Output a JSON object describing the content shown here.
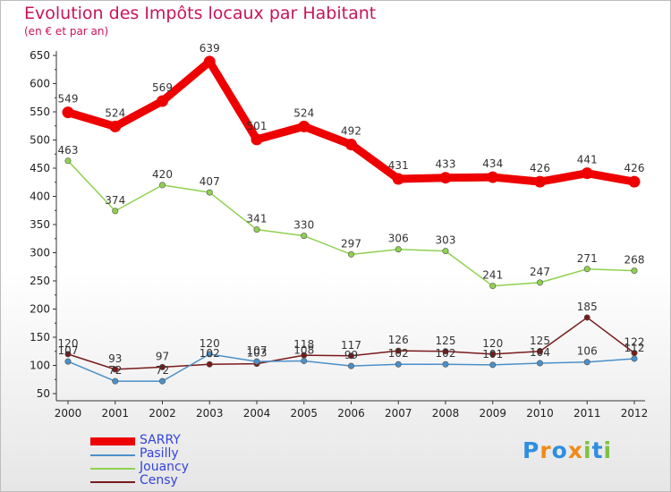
{
  "header": {
    "title": "Evolution des Impôts locaux par Habitant",
    "subtitle": "(en € et par an)"
  },
  "logo": {
    "text": "Proxiti"
  },
  "chart_data": {
    "type": "line",
    "title": "Evolution des Impôts locaux par Habitant",
    "subtitle": "(en € et par an)",
    "x": [
      "2000",
      "2001",
      "2002",
      "2003",
      "2004",
      "2005",
      "2006",
      "2007",
      "2008",
      "2009",
      "2010",
      "2011",
      "2012"
    ],
    "ylim": [
      50,
      650
    ],
    "yticks": [
      50,
      100,
      150,
      200,
      250,
      300,
      350,
      400,
      450,
      500,
      550,
      600,
      650
    ],
    "grid": false,
    "legend_position": "bottom-left",
    "series": [
      {
        "name": "SARRY",
        "color": "#ee0000",
        "values": [
          549,
          524,
          569,
          639,
          501,
          524,
          492,
          431,
          433,
          434,
          426,
          441,
          426
        ]
      },
      {
        "name": "Pasilly",
        "color": "#4a90c8",
        "values": [
          107,
          72,
          72,
          120,
          107,
          108,
          99,
          102,
          102,
          101,
          104,
          106,
          112
        ]
      },
      {
        "name": "Jouancy",
        "color": "#8fd14f",
        "values": [
          463,
          374,
          420,
          407,
          341,
          330,
          297,
          306,
          303,
          241,
          247,
          271,
          268
        ]
      },
      {
        "name": "Censy",
        "color": "#7a1a1a",
        "values": [
          120,
          93,
          97,
          102,
          103,
          118,
          117,
          126,
          125,
          120,
          125,
          185,
          122
        ]
      }
    ]
  }
}
